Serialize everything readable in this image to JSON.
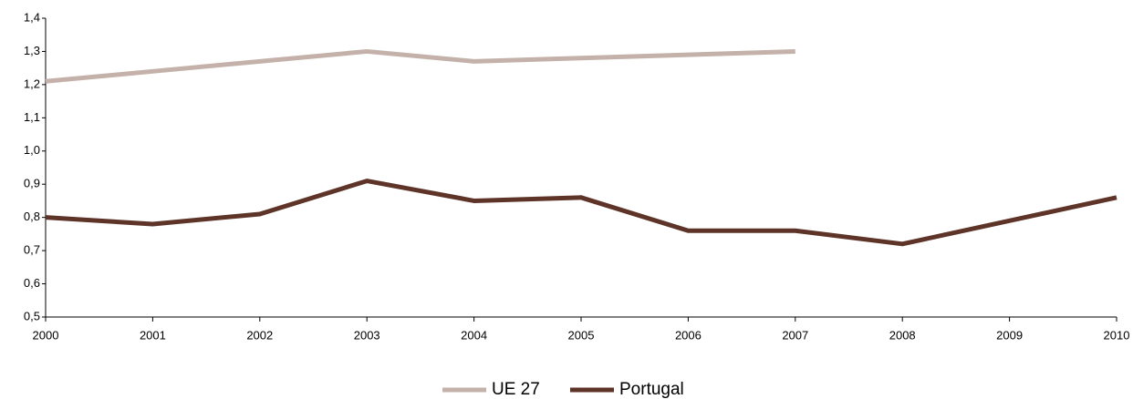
{
  "chart_data": {
    "type": "line",
    "categories": [
      "2000",
      "2001",
      "2002",
      "2003",
      "2004",
      "2005",
      "2006",
      "2007",
      "2008",
      "2009",
      "2010"
    ],
    "series": [
      {
        "name": "UE 27",
        "color": "#c4b1aa",
        "values": [
          1.21,
          1.24,
          1.27,
          1.3,
          1.27,
          1.28,
          1.29,
          1.3,
          null,
          null,
          null
        ]
      },
      {
        "name": "Portugal",
        "color": "#5e3428",
        "values": [
          0.8,
          0.78,
          0.81,
          0.91,
          0.85,
          0.86,
          0.76,
          0.76,
          0.72,
          0.79,
          0.86
        ]
      }
    ],
    "ylim": [
      0.5,
      1.4
    ],
    "yticks": [
      {
        "value": 0.5,
        "label": "0,5"
      },
      {
        "value": 0.6,
        "label": "0,6"
      },
      {
        "value": 0.7,
        "label": "0,7"
      },
      {
        "value": 0.8,
        "label": "0,8"
      },
      {
        "value": 0.9,
        "label": "0,9"
      },
      {
        "value": 1.0,
        "label": "1,0"
      },
      {
        "value": 1.1,
        "label": "1,1"
      },
      {
        "value": 1.2,
        "label": "1,2"
      },
      {
        "value": 1.3,
        "label": "1,3"
      },
      {
        "value": 1.4,
        "label": "1,4"
      }
    ],
    "grid": false,
    "legend": "bottom"
  }
}
